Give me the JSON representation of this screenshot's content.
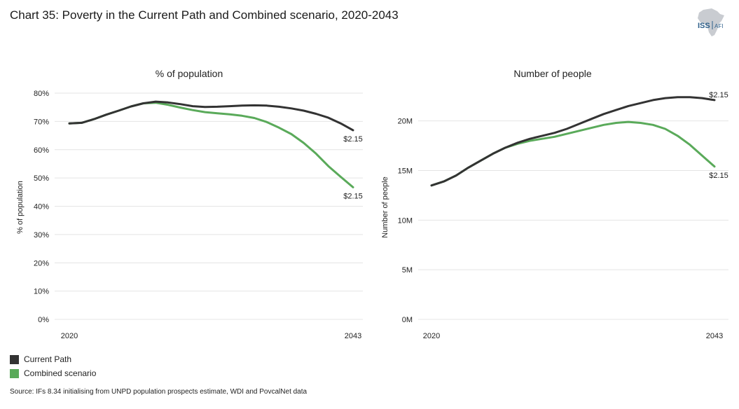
{
  "title": "Chart 35: Poverty in the Current Path and Combined scenario, 2020-2043",
  "logo": {
    "text": "ISS",
    "subtext": "AFI"
  },
  "source": "Source: IFs 8.34 initialising from UNPD population prospects estimate, WDI and PovcalNet data",
  "legend": [
    {
      "label": "Current Path",
      "color": "#333333"
    },
    {
      "label": "Combined scenario",
      "color": "#5aaa5a"
    }
  ],
  "chart_data": [
    {
      "type": "line",
      "title": "% of population",
      "ylabel": "% of population",
      "xlabel": "",
      "x_tick_labels": [
        "2020",
        "2043"
      ],
      "y_ticks": [
        0,
        10,
        20,
        30,
        40,
        50,
        60,
        70,
        80
      ],
      "y_tick_labels": [
        "0%",
        "10%",
        "20%",
        "30%",
        "40%",
        "50%",
        "60%",
        "70%",
        "80%"
      ],
      "ylim": [
        0,
        80
      ],
      "x": [
        2020,
        2021,
        2022,
        2023,
        2024,
        2025,
        2026,
        2027,
        2028,
        2029,
        2030,
        2031,
        2032,
        2033,
        2034,
        2035,
        2036,
        2037,
        2038,
        2039,
        2040,
        2041,
        2042,
        2043
      ],
      "series": [
        {
          "name": "Current Path",
          "color": "#333333",
          "values": [
            69.3,
            69.5,
            70.8,
            72.4,
            73.8,
            75.3,
            76.4,
            77.0,
            76.7,
            76.1,
            75.4,
            75.1,
            75.2,
            75.4,
            75.6,
            75.7,
            75.6,
            75.2,
            74.6,
            73.8,
            72.7,
            71.3,
            69.3,
            66.9
          ]
        },
        {
          "name": "Combined scenario",
          "color": "#5aaa5a",
          "values": [
            69.3,
            69.5,
            70.8,
            72.4,
            73.8,
            75.3,
            76.4,
            76.6,
            75.9,
            74.9,
            74.0,
            73.3,
            72.9,
            72.5,
            72.0,
            71.2,
            69.8,
            67.8,
            65.5,
            62.4,
            58.6,
            54.2,
            50.4,
            46.7
          ]
        }
      ],
      "annotations": [
        {
          "text": "$2.15",
          "series": "Current Path"
        },
        {
          "text": "$2.15",
          "series": "Combined scenario"
        }
      ]
    },
    {
      "type": "line",
      "title": "Number of people",
      "ylabel": "Number of people",
      "xlabel": "",
      "x_tick_labels": [
        "2020",
        "2043"
      ],
      "y_ticks": [
        0,
        5,
        10,
        15,
        20
      ],
      "y_tick_labels": [
        "0M",
        "5M",
        "10M",
        "15M",
        "20M"
      ],
      "ylim": [
        0,
        22.8
      ],
      "x": [
        2020,
        2021,
        2022,
        2023,
        2024,
        2025,
        2026,
        2027,
        2028,
        2029,
        2030,
        2031,
        2032,
        2033,
        2034,
        2035,
        2036,
        2037,
        2038,
        2039,
        2040,
        2041,
        2042,
        2043
      ],
      "series": [
        {
          "name": "Current Path",
          "color": "#333333",
          "values": [
            13.5,
            13.9,
            14.5,
            15.3,
            16.0,
            16.7,
            17.3,
            17.8,
            18.2,
            18.5,
            18.8,
            19.2,
            19.7,
            20.2,
            20.7,
            21.1,
            21.5,
            21.8,
            22.1,
            22.3,
            22.4,
            22.4,
            22.3,
            22.1
          ]
        },
        {
          "name": "Combined scenario",
          "color": "#5aaa5a",
          "values": [
            13.5,
            13.9,
            14.5,
            15.3,
            16.0,
            16.7,
            17.3,
            17.7,
            18.0,
            18.2,
            18.4,
            18.7,
            19.0,
            19.3,
            19.6,
            19.8,
            19.9,
            19.8,
            19.6,
            19.2,
            18.5,
            17.6,
            16.5,
            15.4
          ]
        }
      ],
      "annotations": [
        {
          "text": "$2.15",
          "series": "Current Path"
        },
        {
          "text": "$2.15",
          "series": "Combined scenario"
        }
      ]
    }
  ]
}
